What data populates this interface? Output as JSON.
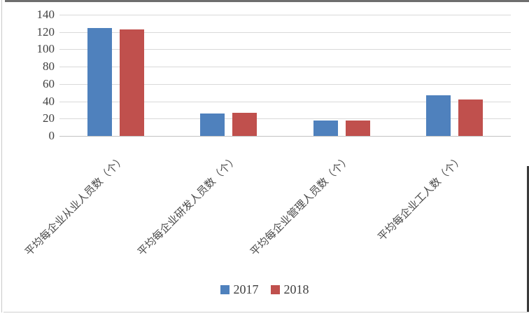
{
  "chart_data": {
    "type": "bar",
    "title": "",
    "xlabel": "",
    "ylabel": "",
    "categories": [
      "平均每企业从业人员数（个）",
      "平均每企业研发人员数（个）",
      "平均每企业管理人员数（个）",
      "平均每企业工人数（个）"
    ],
    "series": [
      {
        "name": "2017",
        "color": "#4F81BD",
        "values": [
          125,
          26,
          18,
          47
        ]
      },
      {
        "name": "2018",
        "color": "#C0504D",
        "values": [
          123,
          27,
          18,
          42
        ]
      }
    ],
    "ylim": [
      0,
      140
    ],
    "yticks": [
      0,
      20,
      40,
      60,
      80,
      100,
      120,
      140
    ],
    "grid": true,
    "legend_position": "bottom",
    "category_label_rotation_deg": 45
  },
  "colors": {
    "gridline": "#d9d9d9",
    "axis_text": "#404040",
    "background": "#ffffff"
  }
}
